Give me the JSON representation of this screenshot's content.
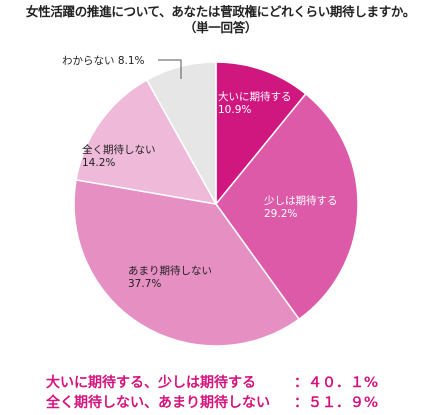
{
  "title": "女性活躍の推進について、あなたは菅政権にどれくらい期待しますか。",
  "subtitle": "（単一回答）",
  "chart_data": {
    "type": "pie",
    "title": "女性活躍の推進について、あなたは菅政権にどれくらい期待しますか。",
    "subtitle": "（単一回答）",
    "start": "12 o'clock, clockwise",
    "slices": [
      {
        "name": "大いに期待する",
        "value": 10.9,
        "value_label": "10.9%",
        "color": "#d0167f"
      },
      {
        "name": "少しは期待する",
        "value": 29.2,
        "value_label": "29.2%",
        "color": "#dd5aa8"
      },
      {
        "name": "あまり期待しない",
        "value": 37.7,
        "value_label": "37.7%",
        "color": "#e68fc3"
      },
      {
        "name": "全く期待しない",
        "value": 14.2,
        "value_label": "14.2%",
        "color": "#efb9da"
      },
      {
        "name": "わからない",
        "value": 8.1,
        "value_label": "8.1%",
        "color": "#e6e6e6"
      }
    ]
  },
  "summary": [
    {
      "label": "大いに期待する、少しは期待する",
      "value": "：４０．１%"
    },
    {
      "label": "全く期待しない、あまり期待しない",
      "value": "：５１．９%"
    }
  ]
}
